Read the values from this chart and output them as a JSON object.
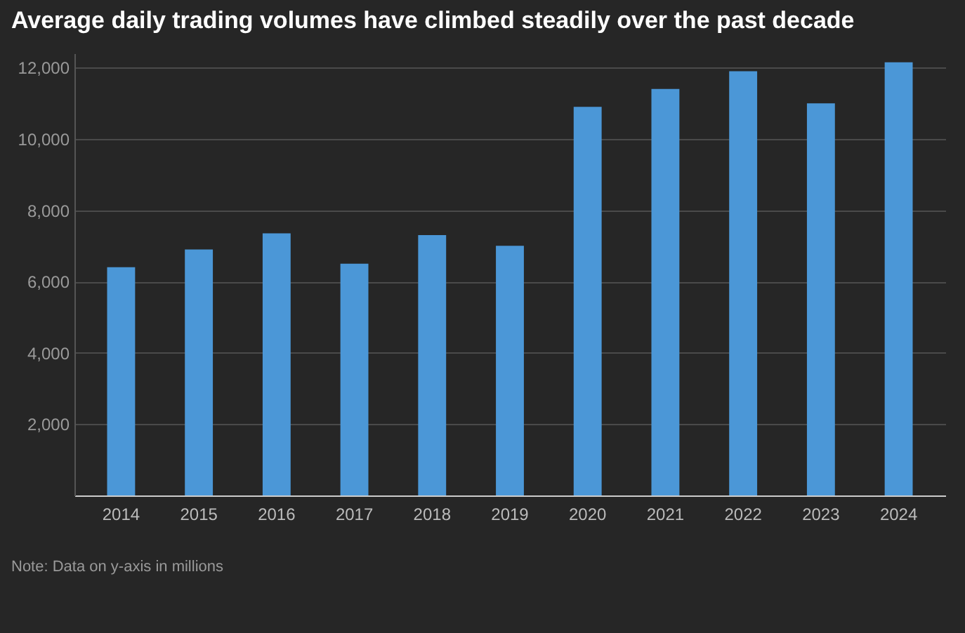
{
  "chart_data": {
    "type": "bar",
    "title": "Average daily trading volumes have climbed steadily over the past decade",
    "categories": [
      "2014",
      "2015",
      "2016",
      "2017",
      "2018",
      "2019",
      "2020",
      "2021",
      "2022",
      "2023",
      "2024"
    ],
    "values": [
      6400,
      6900,
      7350,
      6500,
      7300,
      7000,
      10900,
      11400,
      11900,
      11000,
      12150
    ],
    "color": "#4b97d7",
    "ylim": [
      0,
      12400
    ],
    "yticks": [
      {
        "value": 2000,
        "label": "2,000"
      },
      {
        "value": 4000,
        "label": "4,000"
      },
      {
        "value": 6000,
        "label": "6,000"
      },
      {
        "value": 8000,
        "label": "8,000"
      },
      {
        "value": 10000,
        "label": "10,000"
      },
      {
        "value": 12000,
        "label": "12,000"
      }
    ],
    "grid": "y",
    "annotations": [
      "Note: Data on y-axis in millions"
    ]
  }
}
